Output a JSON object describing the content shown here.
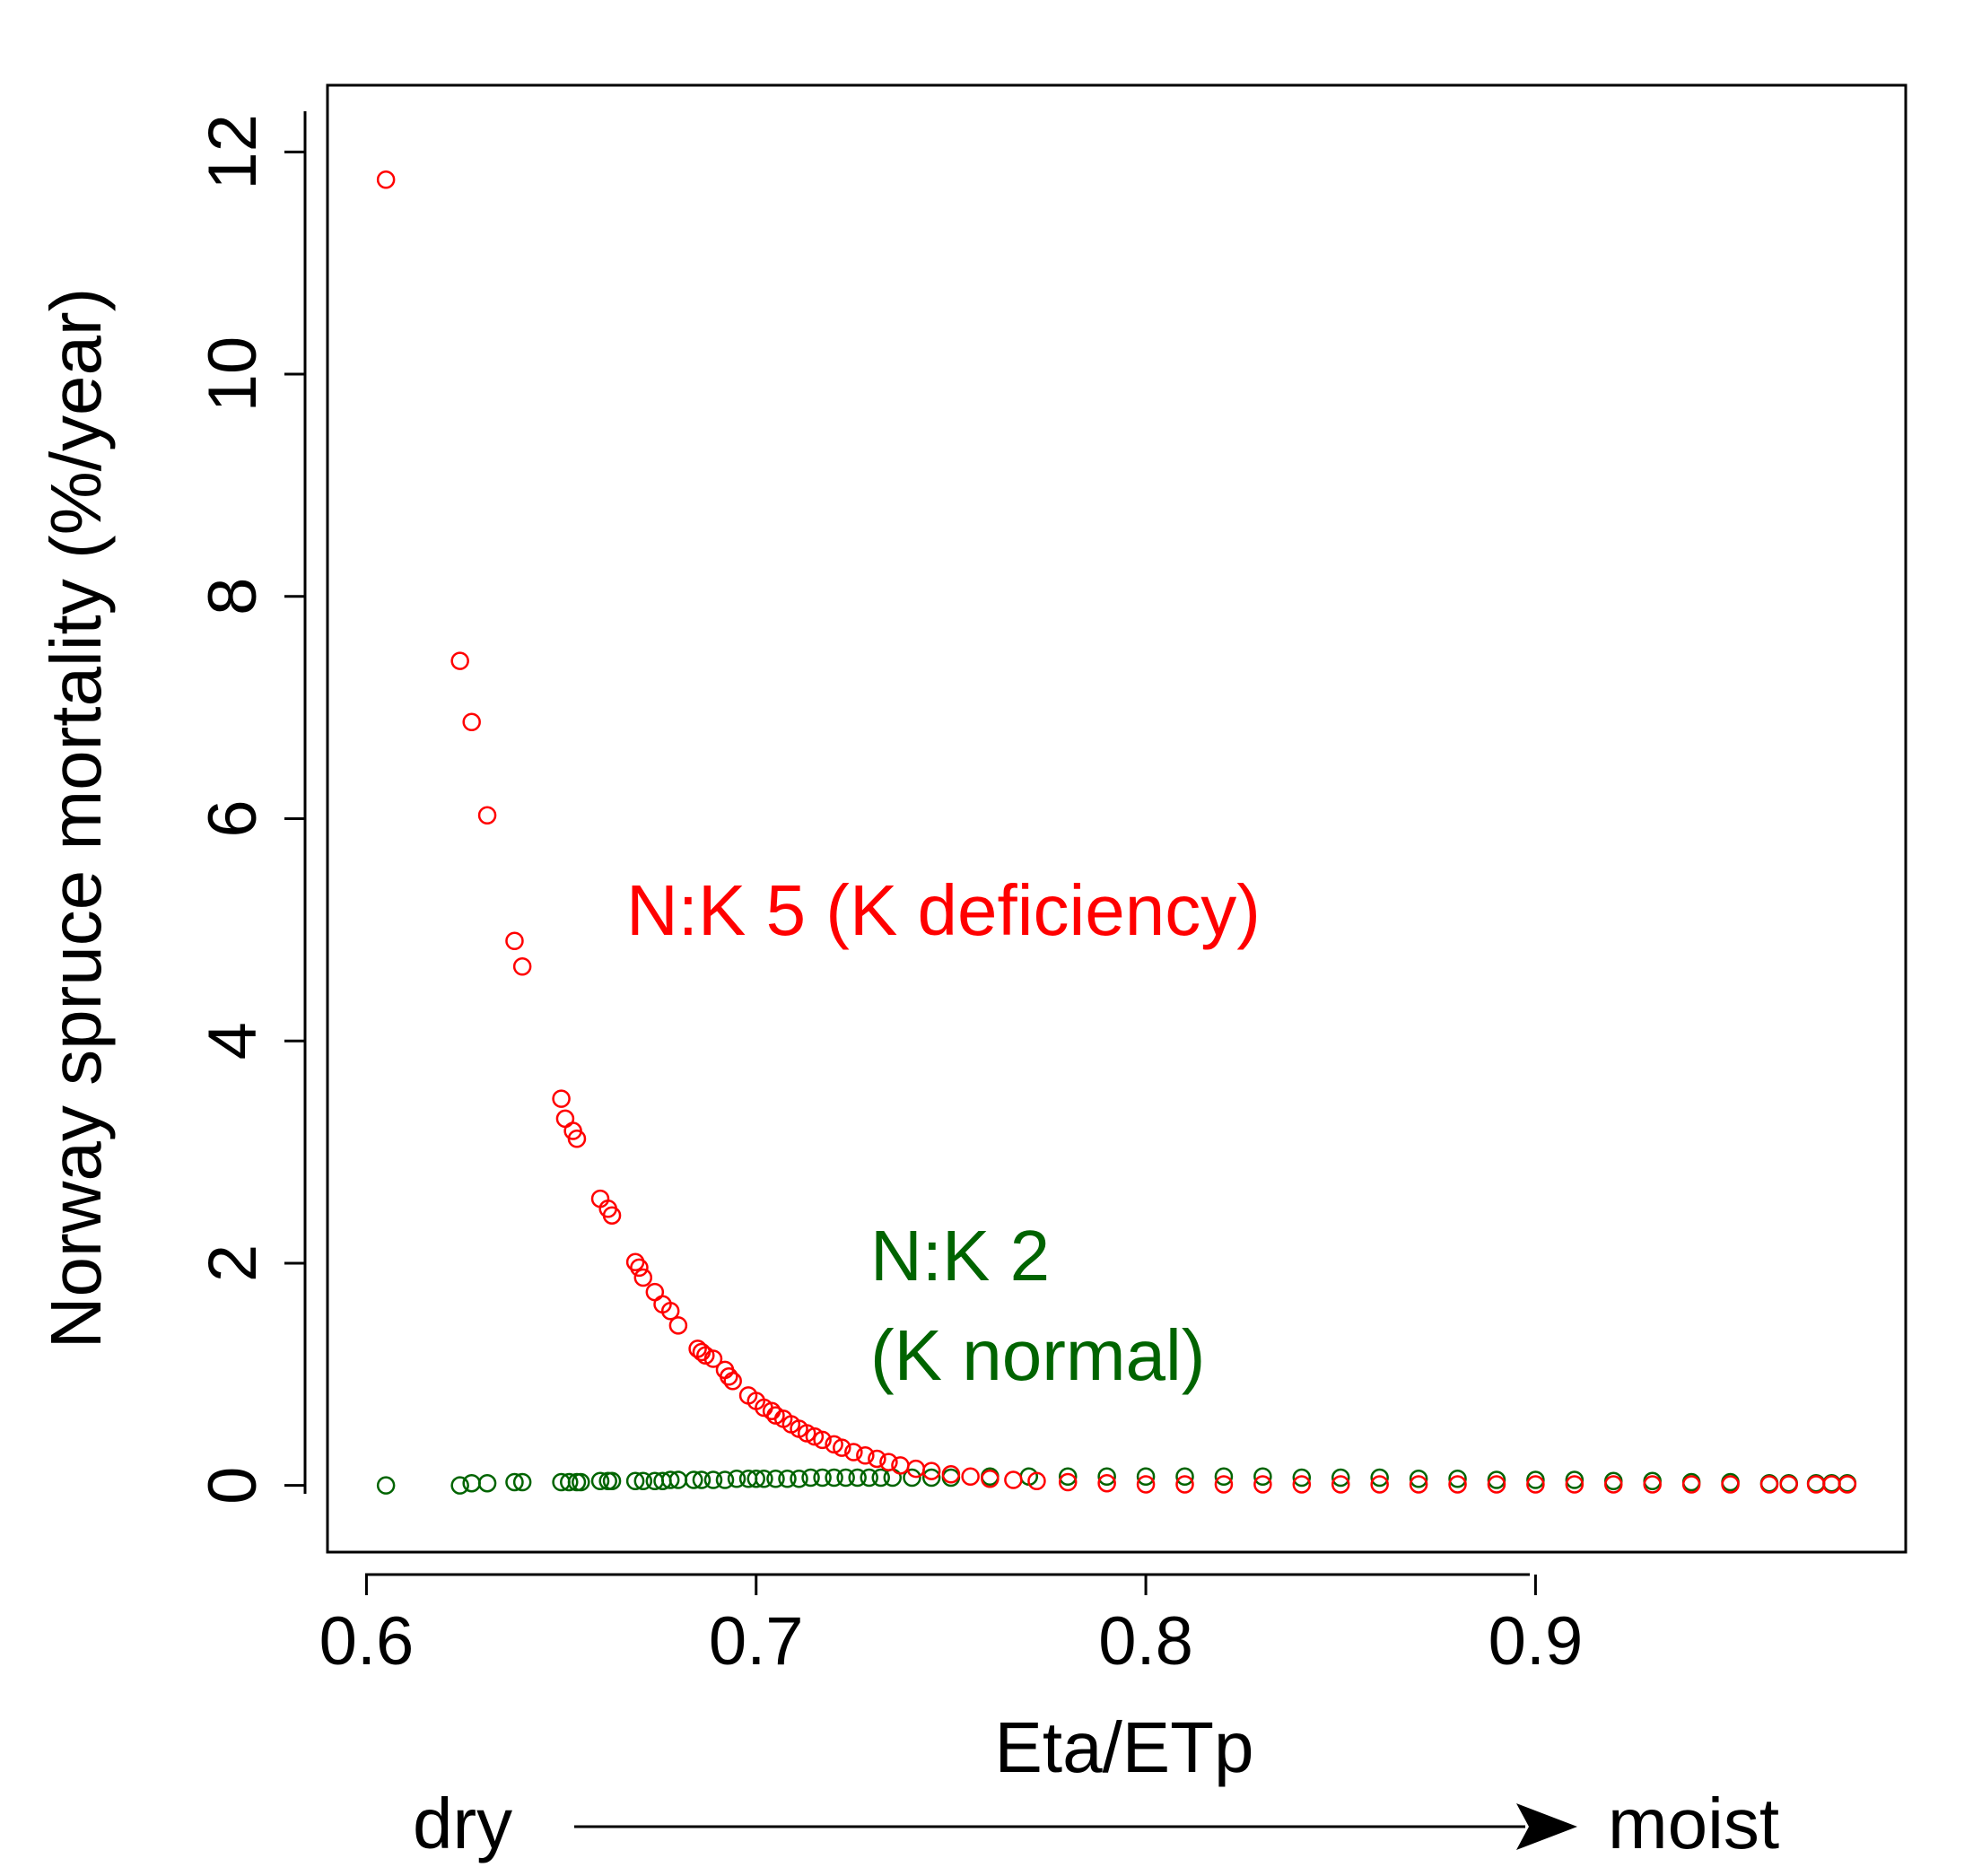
{
  "chart_data": {
    "type": "scatter",
    "xlabel": "Eta/ETp",
    "ylabel": "Norway spruce mortality (%/year)",
    "xlim": [
      0.59,
      0.995
    ],
    "ylim": [
      -0.6,
      12.6
    ],
    "x_ticks": [
      0.6,
      0.7,
      0.8,
      0.9
    ],
    "x_tick_labels": [
      "0.6",
      "0.7",
      "0.8",
      "0.9"
    ],
    "y_ticks": [
      0,
      2,
      4,
      6,
      8,
      10,
      12
    ],
    "y_tick_labels": [
      "0",
      "2",
      "4",
      "6",
      "8",
      "10",
      "12"
    ],
    "grid": false,
    "marker": "open-circle",
    "series": [
      {
        "name": "N:K 5 (K deficiency)",
        "color": "#ff0000",
        "x": [
          0.605,
          0.624,
          0.627,
          0.631,
          0.638,
          0.64,
          0.65,
          0.651,
          0.653,
          0.654,
          0.66,
          0.662,
          0.663,
          0.669,
          0.67,
          0.671,
          0.674,
          0.676,
          0.678,
          0.68,
          0.685,
          0.686,
          0.687,
          0.689,
          0.692,
          0.693,
          0.694,
          0.698,
          0.7,
          0.702,
          0.704,
          0.705,
          0.707,
          0.709,
          0.711,
          0.713,
          0.715,
          0.717,
          0.72,
          0.722,
          0.725,
          0.728,
          0.731,
          0.734,
          0.737,
          0.741,
          0.745,
          0.75,
          0.755,
          0.76,
          0.766,
          0.772,
          0.78,
          0.79,
          0.8,
          0.81,
          0.82,
          0.83,
          0.84,
          0.85,
          0.86,
          0.87,
          0.88,
          0.89,
          0.9,
          0.91,
          0.92,
          0.93,
          0.94,
          0.95,
          0.96,
          0.965,
          0.972,
          0.976,
          0.98
        ],
        "y": [
          11.75,
          7.42,
          6.87,
          6.03,
          4.9,
          4.67,
          3.48,
          3.3,
          3.19,
          3.12,
          2.58,
          2.49,
          2.43,
          2.01,
          1.96,
          1.87,
          1.74,
          1.63,
          1.57,
          1.44,
          1.23,
          1.2,
          1.17,
          1.14,
          1.04,
          0.98,
          0.94,
          0.81,
          0.76,
          0.7,
          0.67,
          0.63,
          0.6,
          0.55,
          0.51,
          0.47,
          0.44,
          0.41,
          0.37,
          0.34,
          0.3,
          0.27,
          0.24,
          0.21,
          0.18,
          0.15,
          0.13,
          0.1,
          0.08,
          0.06,
          0.05,
          0.04,
          0.03,
          0.02,
          0.01,
          0.01,
          0.01,
          0.01,
          0.01,
          0.01,
          0.01,
          0.01,
          0.01,
          0.01,
          0.01,
          0.01,
          0.01,
          0.01,
          0.01,
          0.01,
          0.01,
          0.01,
          0.01,
          0.01,
          0.01
        ]
      },
      {
        "name": "N:K 2 (K normal)",
        "color": "#006400",
        "x": [
          0.605,
          0.624,
          0.627,
          0.631,
          0.638,
          0.64,
          0.65,
          0.652,
          0.654,
          0.655,
          0.66,
          0.662,
          0.663,
          0.669,
          0.671,
          0.674,
          0.676,
          0.678,
          0.68,
          0.684,
          0.686,
          0.689,
          0.692,
          0.695,
          0.698,
          0.7,
          0.702,
          0.705,
          0.708,
          0.711,
          0.714,
          0.717,
          0.72,
          0.723,
          0.726,
          0.729,
          0.732,
          0.735,
          0.74,
          0.745,
          0.75,
          0.76,
          0.77,
          0.78,
          0.79,
          0.8,
          0.81,
          0.82,
          0.83,
          0.84,
          0.85,
          0.86,
          0.87,
          0.88,
          0.89,
          0.9,
          0.91,
          0.92,
          0.93,
          0.94,
          0.95,
          0.96,
          0.965,
          0.972,
          0.976,
          0.98
        ],
        "y": [
          0.0,
          0.0,
          0.02,
          0.02,
          0.03,
          0.03,
          0.03,
          0.03,
          0.03,
          0.03,
          0.04,
          0.04,
          0.04,
          0.04,
          0.04,
          0.04,
          0.04,
          0.05,
          0.05,
          0.05,
          0.05,
          0.05,
          0.05,
          0.06,
          0.06,
          0.06,
          0.06,
          0.06,
          0.06,
          0.06,
          0.07,
          0.07,
          0.07,
          0.07,
          0.07,
          0.07,
          0.07,
          0.07,
          0.07,
          0.07,
          0.07,
          0.08,
          0.08,
          0.08,
          0.08,
          0.08,
          0.08,
          0.08,
          0.08,
          0.07,
          0.07,
          0.07,
          0.06,
          0.06,
          0.05,
          0.05,
          0.05,
          0.04,
          0.04,
          0.03,
          0.03,
          0.02,
          0.02,
          0.02,
          0.02,
          0.02
        ]
      }
    ],
    "annotations": [
      {
        "text": "N:K 5 (K deficiency)",
        "color": "#ff0000"
      },
      {
        "text": "N:K 2",
        "color": "#006400"
      },
      {
        "text": "(K normal)",
        "color": "#006400"
      }
    ],
    "gradient": {
      "left_label": "dry",
      "right_label": "moist"
    }
  }
}
